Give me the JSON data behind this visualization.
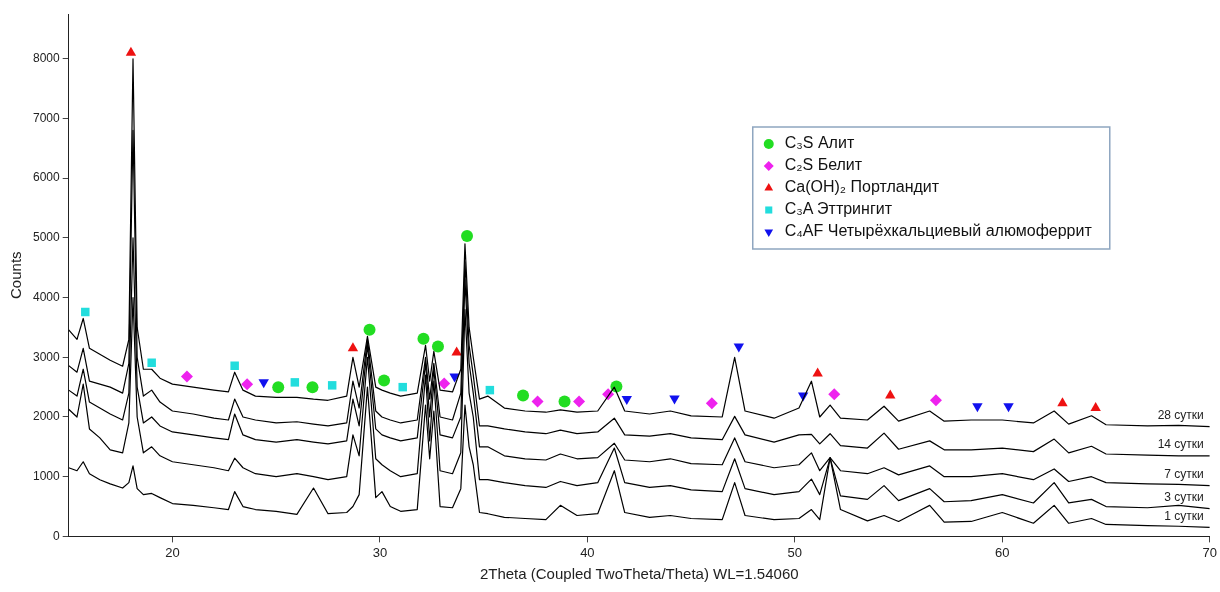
{
  "chart_data": {
    "type": "line",
    "xlabel": "2Theta (Coupled TwoTheta/Theta) WL=1.54060",
    "ylabel": "Counts",
    "x": [
      15,
      15.4,
      15.7,
      16.0,
      16.5,
      17,
      17.6,
      17.9,
      18.1,
      18.3,
      18.6,
      19.0,
      19.4,
      20,
      21,
      22,
      22.7,
      23.0,
      23.4,
      24,
      25,
      26,
      26.8,
      27.5,
      28.4,
      28.7,
      29.0,
      29.4,
      29.8,
      30.1,
      30.5,
      31,
      31.8,
      32.2,
      32.4,
      32.6,
      32.9,
      33.5,
      33.9,
      34.1,
      34.3,
      34.5,
      34.8,
      35.2,
      36,
      37,
      38,
      38.7,
      39.5,
      40.5,
      41.3,
      41.8,
      43,
      44,
      45,
      46.5,
      47.1,
      47.6,
      49,
      50.2,
      50.8,
      51.2,
      51.7,
      52.2,
      53.5,
      54.3,
      55,
      56.5,
      57.2,
      58.5,
      60,
      61.5,
      62.5,
      63.2,
      64.3,
      65,
      67,
      68.5,
      70
    ],
    "series": [
      {
        "name": "28 сутки",
        "color": "#000000",
        "values": [
          3460,
          3300,
          3650,
          3150,
          3050,
          2950,
          2850,
          3300,
          8000,
          3500,
          2800,
          2800,
          2650,
          2550,
          2500,
          2450,
          2420,
          2750,
          2450,
          2350,
          2330,
          2330,
          2300,
          2280,
          2350,
          3000,
          2500,
          3350,
          2500,
          2450,
          2400,
          2350,
          2400,
          3200,
          2600,
          3100,
          2450,
          2420,
          2800,
          4900,
          3500,
          3000,
          2300,
          2350,
          2150,
          2100,
          2080,
          2120,
          2080,
          2100,
          2500,
          2100,
          2050,
          2100,
          2020,
          2000,
          3000,
          2100,
          1980,
          2150,
          2600,
          2000,
          2200,
          1980,
          1950,
          2180,
          1930,
          2100,
          1930,
          1950,
          1950,
          1900,
          2100,
          1880,
          2020,
          1870,
          1850,
          1860,
          1840
        ]
      },
      {
        "name": "14 сутки",
        "color": "#000000",
        "values": [
          2860,
          2750,
          3150,
          2600,
          2550,
          2500,
          2400,
          2900,
          6800,
          3000,
          2350,
          2450,
          2250,
          2100,
          2050,
          1980,
          1950,
          2300,
          2000,
          1950,
          1900,
          1920,
          1880,
          1850,
          1900,
          2600,
          2150,
          3300,
          2100,
          2000,
          1950,
          1900,
          1950,
          3000,
          2300,
          2900,
          2000,
          1950,
          2400,
          4600,
          3200,
          2700,
          1850,
          1850,
          1800,
          1750,
          1720,
          1780,
          1720,
          1750,
          1980,
          1700,
          1680,
          1720,
          1650,
          1620,
          2010,
          1700,
          1580,
          1700,
          1710,
          1550,
          1720,
          1520,
          1480,
          1730,
          1460,
          1600,
          1450,
          1450,
          1480,
          1420,
          1630,
          1400,
          1510,
          1380,
          1360,
          1350,
          1350
        ]
      },
      {
        "name": "7 сутки",
        "color": "#000000",
        "values": [
          2450,
          2350,
          2800,
          2250,
          2150,
          2050,
          1950,
          2400,
          5000,
          2500,
          1900,
          2000,
          1850,
          1750,
          1700,
          1650,
          1620,
          2050,
          1700,
          1620,
          1580,
          1620,
          1580,
          1550,
          1600,
          2300,
          1850,
          3200,
          1800,
          1700,
          1650,
          1600,
          1650,
          2900,
          2000,
          2800,
          1700,
          1650,
          2000,
          4300,
          2900,
          2400,
          1500,
          1500,
          1350,
          1300,
          1280,
          1380,
          1300,
          1320,
          1560,
          1280,
          1250,
          1300,
          1220,
          1200,
          1650,
          1250,
          1150,
          1200,
          1400,
          1100,
          1320,
          1100,
          1050,
          1150,
          1030,
          1180,
          1000,
          1000,
          1050,
          950,
          1130,
          920,
          1000,
          900,
          880,
          870,
          850
        ]
      },
      {
        "name": "3 сутки",
        "color": "#000000",
        "values": [
          2130,
          2000,
          2550,
          1800,
          1650,
          1450,
          1400,
          1900,
          4000,
          2000,
          1400,
          1500,
          1350,
          1250,
          1200,
          1150,
          1100,
          1310,
          1150,
          1050,
          1000,
          1050,
          1000,
          950,
          1000,
          1700,
          1350,
          3000,
          1300,
          1200,
          1100,
          1000,
          1050,
          2700,
          1600,
          2600,
          1100,
          1050,
          1400,
          3800,
          2400,
          2000,
          950,
          950,
          900,
          850,
          820,
          920,
          850,
          900,
          1480,
          900,
          820,
          850,
          780,
          750,
          1300,
          800,
          700,
          750,
          960,
          700,
          1310,
          680,
          620,
          850,
          600,
          800,
          580,
          600,
          700,
          560,
          900,
          560,
          620,
          500,
          480,
          520,
          466
        ]
      },
      {
        "name": "1 сутки",
        "color": "#000000",
        "values": [
          1150,
          1100,
          1250,
          1050,
          950,
          880,
          810,
          900,
          1180,
          800,
          700,
          720,
          650,
          550,
          520,
          480,
          450,
          750,
          500,
          450,
          420,
          370,
          810,
          380,
          400,
          500,
          700,
          2500,
          650,
          750,
          500,
          420,
          450,
          2200,
          1300,
          2100,
          500,
          480,
          800,
          2200,
          1500,
          1200,
          400,
          380,
          320,
          300,
          280,
          520,
          350,
          380,
          1100,
          400,
          320,
          350,
          300,
          280,
          900,
          350,
          280,
          300,
          450,
          280,
          1320,
          450,
          260,
          350,
          250,
          520,
          240,
          250,
          400,
          220,
          520,
          220,
          300,
          200,
          180,
          170,
          150
        ]
      },
      {
        "type": "scatter",
        "name": "C₃S Алит",
        "color": "#22dd22",
        "marker": "circle",
        "x": [
          25.1,
          26.75,
          29.5,
          30.2,
          32.1,
          32.8,
          34.2,
          36.9,
          38.9,
          41.4
        ],
        "values": [
          2500,
          2500,
          3460,
          2610,
          3310,
          3180,
          5030,
          2360,
          2260,
          2510
        ]
      },
      {
        "type": "scatter",
        "name": "C₂S Белит",
        "color": "#ee22ee",
        "marker": "diamond",
        "x": [
          20.7,
          23.6,
          33.1,
          37.6,
          39.6,
          41.0,
          46.0,
          51.9,
          56.8
        ],
        "values": [
          2680,
          2550,
          2560,
          2260,
          2260,
          2380,
          2230,
          2380,
          2280
        ]
      },
      {
        "type": "scatter",
        "name": "Ca(OH)₂ Портландит",
        "color": "#ee1111",
        "marker": "triangle",
        "x": [
          18.0,
          28.7,
          33.7,
          51.1,
          54.6,
          62.9,
          64.5
        ],
        "values": [
          8100,
          3150,
          3080,
          2730,
          2360,
          2230,
          2150
        ]
      },
      {
        "type": "scatter",
        "name": "C₃A Эттрингит",
        "color": "#22dddd",
        "marker": "square",
        "x": [
          15.8,
          19.0,
          23.0,
          25.9,
          27.7,
          31.1,
          35.3
        ],
        "values": [
          3760,
          2910,
          2860,
          2580,
          2530,
          2500,
          2450
        ]
      },
      {
        "type": "scatter",
        "name": "C₄AF Четырёхкальциевый алюмоферрит",
        "color": "#1111ee",
        "marker": "triangle-down",
        "x": [
          24.4,
          33.6,
          41.9,
          44.2,
          47.3,
          50.4,
          58.8,
          60.3
        ],
        "values": [
          2580,
          2680,
          2300,
          2310,
          3180,
          2360,
          2180,
          2180
        ]
      }
    ],
    "xlim": [
      15,
      70
    ],
    "ylim": [
      0,
      8750
    ],
    "xticks": [
      20,
      30,
      40,
      50,
      60,
      70
    ],
    "yticks": [
      0,
      1000,
      2000,
      3000,
      4000,
      5000,
      6000,
      7000,
      8000
    ],
    "grid": false,
    "legend": "top right",
    "marker": "none"
  }
}
